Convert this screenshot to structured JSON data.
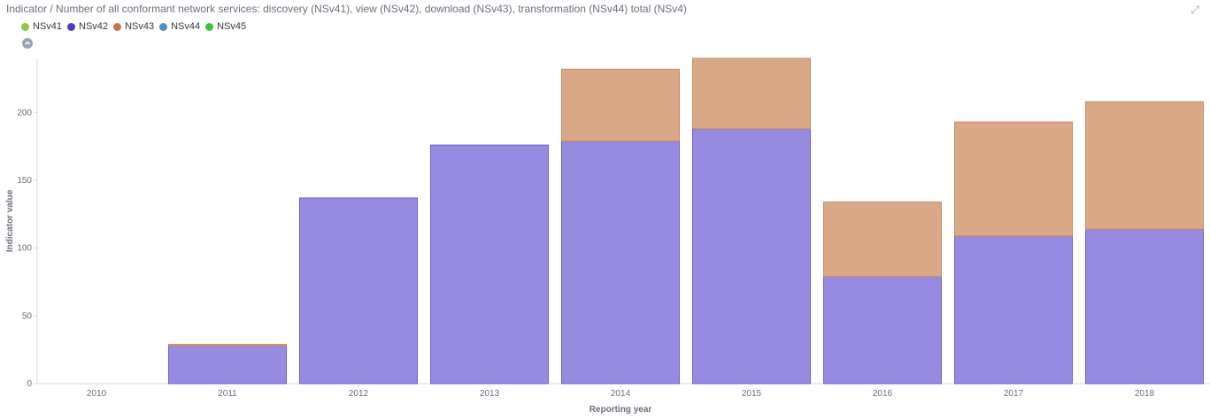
{
  "title": "Indicator / Number of all conformant network services: discovery (NSv41), view (NSv42), download (NSv43), transformation (NSv44) total (NSv4)",
  "legend": [
    {
      "label": "NSv41",
      "color": "#8ec63f"
    },
    {
      "label": "NSv42",
      "color": "#4b3cc0"
    },
    {
      "label": "NSv43",
      "color": "#c8744a"
    },
    {
      "label": "NSv44",
      "color": "#4a90c8"
    },
    {
      "label": "NSv45",
      "color": "#3fbf3f"
    }
  ],
  "chart_data": {
    "type": "bar",
    "stacked": true,
    "categories": [
      "2010",
      "2011",
      "2012",
      "2013",
      "2014",
      "2015",
      "2016",
      "2017",
      "2018"
    ],
    "series": [
      {
        "name": "NSv42",
        "color": "#968be0",
        "stroke": "#6f5fd0",
        "values": [
          0,
          28,
          137,
          176,
          179,
          188,
          79,
          109,
          114
        ]
      },
      {
        "name": "NSv43",
        "color": "#d9a987",
        "stroke": "#c88a60",
        "values": [
          0,
          1,
          0,
          0,
          53,
          52,
          55,
          84,
          94
        ]
      }
    ],
    "xlabel": "Reporting year",
    "ylabel": "Indicator value",
    "yticks": [
      0,
      50,
      100,
      150,
      200
    ],
    "ylim": [
      0,
      240
    ]
  }
}
